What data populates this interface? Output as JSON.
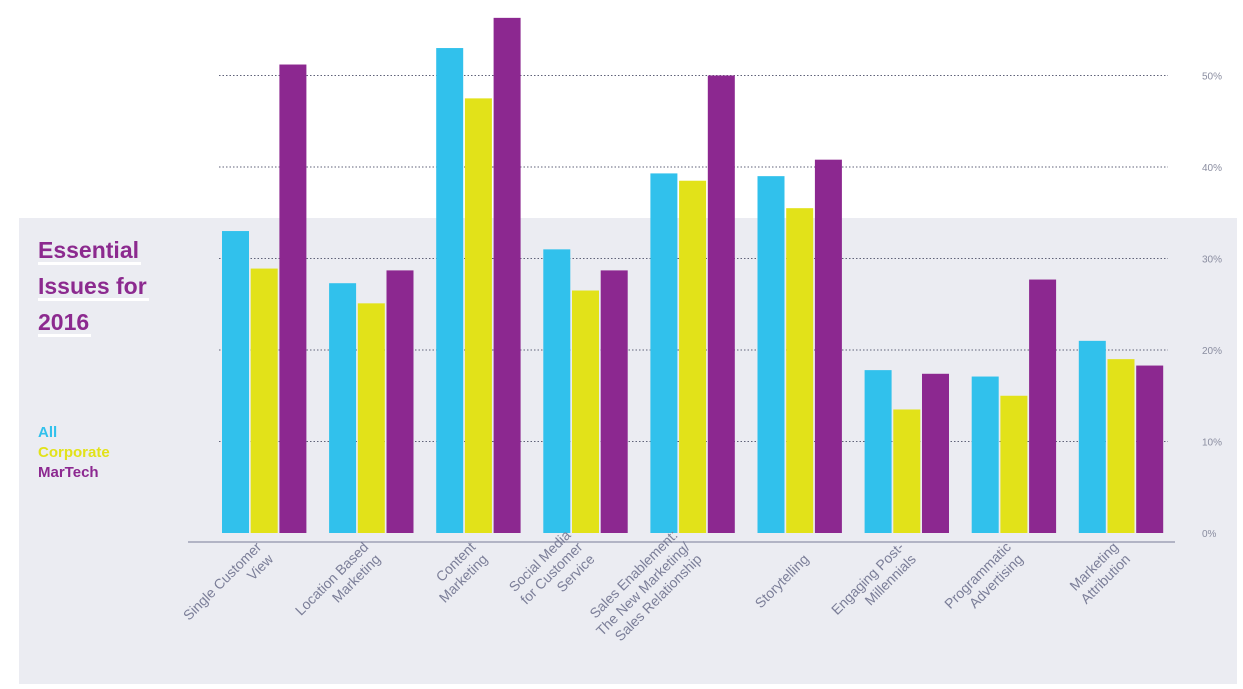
{
  "chart_data": {
    "type": "bar",
    "title_lines": [
      "Essential",
      "Issues for",
      "2016"
    ],
    "categories": [
      [
        "Single Customer",
        "View"
      ],
      [
        "Location Based",
        "Marketing"
      ],
      [
        "Content",
        "Marketing"
      ],
      [
        "Social Media",
        "for Customer",
        "Service"
      ],
      [
        "Sales Enablement:",
        "The New Marketing/",
        "Sales Relationship"
      ],
      [
        "Storytelling"
      ],
      [
        "Engaging Post-",
        "Millennials"
      ],
      [
        "Programmatic",
        "Advertising"
      ],
      [
        "Marketing",
        "Attribution"
      ]
    ],
    "series": [
      {
        "name": "All",
        "color": "#31c1ec",
        "values": [
          33,
          27.3,
          53,
          31,
          39.3,
          39,
          17.8,
          17.1,
          21
        ]
      },
      {
        "name": "Corporate",
        "color": "#e2e219",
        "values": [
          28.9,
          25.1,
          47.5,
          26.5,
          38.5,
          35.5,
          13.5,
          15,
          19
        ]
      },
      {
        "name": "MarTech",
        "color": "#8c2890",
        "values": [
          51.2,
          28.7,
          56.3,
          28.7,
          50,
          40.8,
          17.4,
          27.7,
          18.3
        ]
      }
    ],
    "y_ticks": [
      {
        "value": 0,
        "label": "0%"
      },
      {
        "value": 10,
        "label": "10%"
      },
      {
        "value": 20,
        "label": "20%"
      },
      {
        "value": 30,
        "label": "30%"
      },
      {
        "value": 40,
        "label": "40%"
      },
      {
        "value": 50,
        "label": "50%"
      }
    ],
    "ylim": [
      0,
      60
    ],
    "grid": true,
    "legend_position": "left"
  }
}
